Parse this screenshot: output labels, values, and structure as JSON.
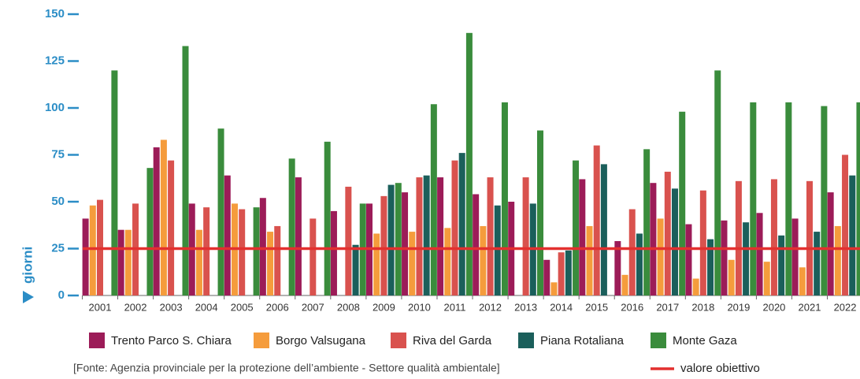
{
  "chart_data": {
    "type": "bar",
    "ylabel": "giorni",
    "categories": [
      "2001",
      "2002",
      "2003",
      "2004",
      "2005",
      "2006",
      "2007",
      "2008",
      "2009",
      "2010",
      "2011",
      "2012",
      "2013",
      "2014",
      "2015",
      "2016",
      "2017",
      "2018",
      "2019",
      "2020",
      "2021",
      "2022"
    ],
    "series": [
      {
        "name": "Trento Parco S. Chiara",
        "color": "#9c1c58",
        "values": [
          41,
          35,
          79,
          49,
          64,
          52,
          63,
          45,
          49,
          55,
          63,
          54,
          50,
          19,
          62,
          29,
          60,
          38,
          40,
          44,
          41,
          55
        ]
      },
      {
        "name": "Borgo Valsugana",
        "color": "#f59c3c",
        "values": [
          48,
          35,
          83,
          35,
          49,
          34,
          null,
          null,
          33,
          34,
          36,
          37,
          null,
          7,
          37,
          11,
          41,
          9,
          19,
          18,
          15,
          37
        ]
      },
      {
        "name": "Riva del Garda",
        "color": "#d9524e",
        "values": [
          51,
          49,
          72,
          47,
          46,
          37,
          41,
          58,
          53,
          63,
          72,
          63,
          63,
          23,
          80,
          46,
          66,
          56,
          61,
          62,
          61,
          75
        ]
      },
      {
        "name": "Piana Rotaliana",
        "color": "#1b5f5b",
        "values": [
          null,
          null,
          null,
          null,
          null,
          null,
          null,
          27,
          59,
          64,
          76,
          48,
          49,
          24,
          70,
          33,
          57,
          30,
          39,
          32,
          34,
          64
        ]
      },
      {
        "name": "Monte Gaza",
        "color": "#3a8c3c",
        "values": [
          120,
          68,
          133,
          89,
          47,
          73,
          82,
          49,
          60,
          102,
          140,
          103,
          88,
          72,
          null,
          78,
          98,
          120,
          103,
          103,
          101,
          103
        ]
      }
    ],
    "target": {
      "value": 25,
      "label": "valore obiettivo",
      "color": "#e3302f"
    },
    "source": "[Fonte: Agenzia provinciale per la protezione dell’ambiente - Settore qualità ambientale]",
    "ylim": [
      0,
      150
    ],
    "yticks": [
      0,
      25,
      50,
      75,
      100,
      125,
      150
    ],
    "grid": false
  }
}
